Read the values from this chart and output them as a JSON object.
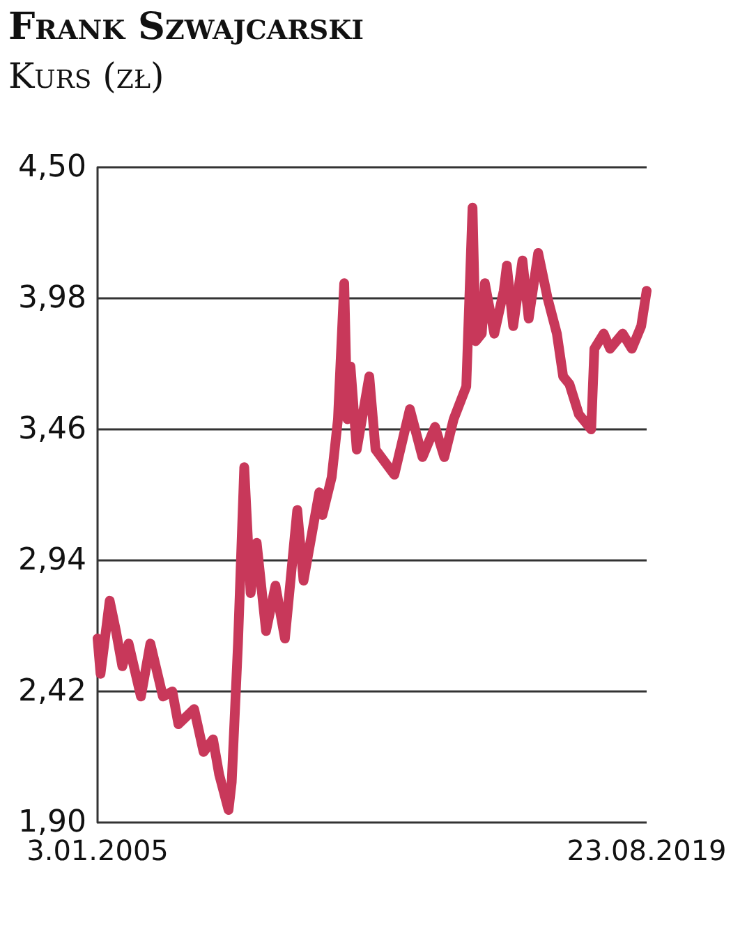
{
  "chart_data": {
    "type": "line",
    "title": "Frank Szwajcarski",
    "subtitle": "Kurs (zł)",
    "xlim": [
      "2005-01-03",
      "2019-08-23"
    ],
    "xticks": [
      {
        "value": "2005-01-03",
        "label": "3.01.2005"
      },
      {
        "value": "2019-08-23",
        "label": "23.08.2019"
      }
    ],
    "ylim": [
      1.9,
      4.5
    ],
    "yticks": [
      {
        "value": 1.9,
        "label": "1,90"
      },
      {
        "value": 2.42,
        "label": "2,42"
      },
      {
        "value": 2.94,
        "label": "2,94"
      },
      {
        "value": 3.46,
        "label": "3,46"
      },
      {
        "value": 3.98,
        "label": "3,98"
      },
      {
        "value": 4.5,
        "label": "4,50"
      }
    ],
    "grid": "y",
    "line_style": "solid",
    "series": [
      {
        "color": "#c8385a",
        "x": [
          "2005-01-03",
          "2005-02",
          "2005-05",
          "2005-07",
          "2005-09",
          "2005-11",
          "2006-03",
          "2006-06",
          "2006-10",
          "2007-01",
          "2007-03",
          "2007-08",
          "2007-11",
          "2008-02",
          "2008-04",
          "2008-07",
          "2008-08",
          "2008-10",
          "2008-12",
          "2009-02",
          "2009-04",
          "2009-07",
          "2009-10",
          "2010-01",
          "2010-05",
          "2010-07",
          "2010-12",
          "2011-01",
          "2011-04",
          "2011-06",
          "2011-08",
          "2011-09",
          "2011-10",
          "2011-12",
          "2012-04",
          "2012-06",
          "2012-12",
          "2013-05",
          "2013-09",
          "2014-01",
          "2014-04",
          "2014-07",
          "2014-11",
          "2015-01",
          "2015-02",
          "2015-04",
          "2015-05",
          "2015-08",
          "2015-11",
          "2015-12",
          "2016-02",
          "2016-05",
          "2016-07",
          "2016-10",
          "2017-01",
          "2017-04",
          "2017-06",
          "2017-08",
          "2017-11",
          "2018-03",
          "2018-04",
          "2018-07",
          "2018-09",
          "2019-01",
          "2019-04",
          "2019-07",
          "2019-08-23"
        ],
        "values": [
          2.63,
          2.49,
          2.78,
          2.66,
          2.52,
          2.61,
          2.4,
          2.61,
          2.4,
          2.42,
          2.29,
          2.35,
          2.18,
          2.23,
          2.09,
          1.95,
          2.06,
          2.61,
          3.31,
          2.81,
          3.01,
          2.66,
          2.84,
          2.63,
          3.14,
          2.86,
          3.21,
          3.12,
          3.27,
          3.5,
          4.04,
          3.5,
          3.71,
          3.38,
          3.67,
          3.38,
          3.28,
          3.54,
          3.35,
          3.47,
          3.35,
          3.5,
          3.63,
          4.34,
          3.81,
          3.84,
          4.04,
          3.84,
          4.01,
          4.11,
          3.87,
          4.13,
          3.9,
          4.16,
          3.98,
          3.84,
          3.67,
          3.64,
          3.52,
          3.46,
          3.78,
          3.84,
          3.78,
          3.84,
          3.78,
          3.87,
          4.01
        ]
      }
    ]
  }
}
